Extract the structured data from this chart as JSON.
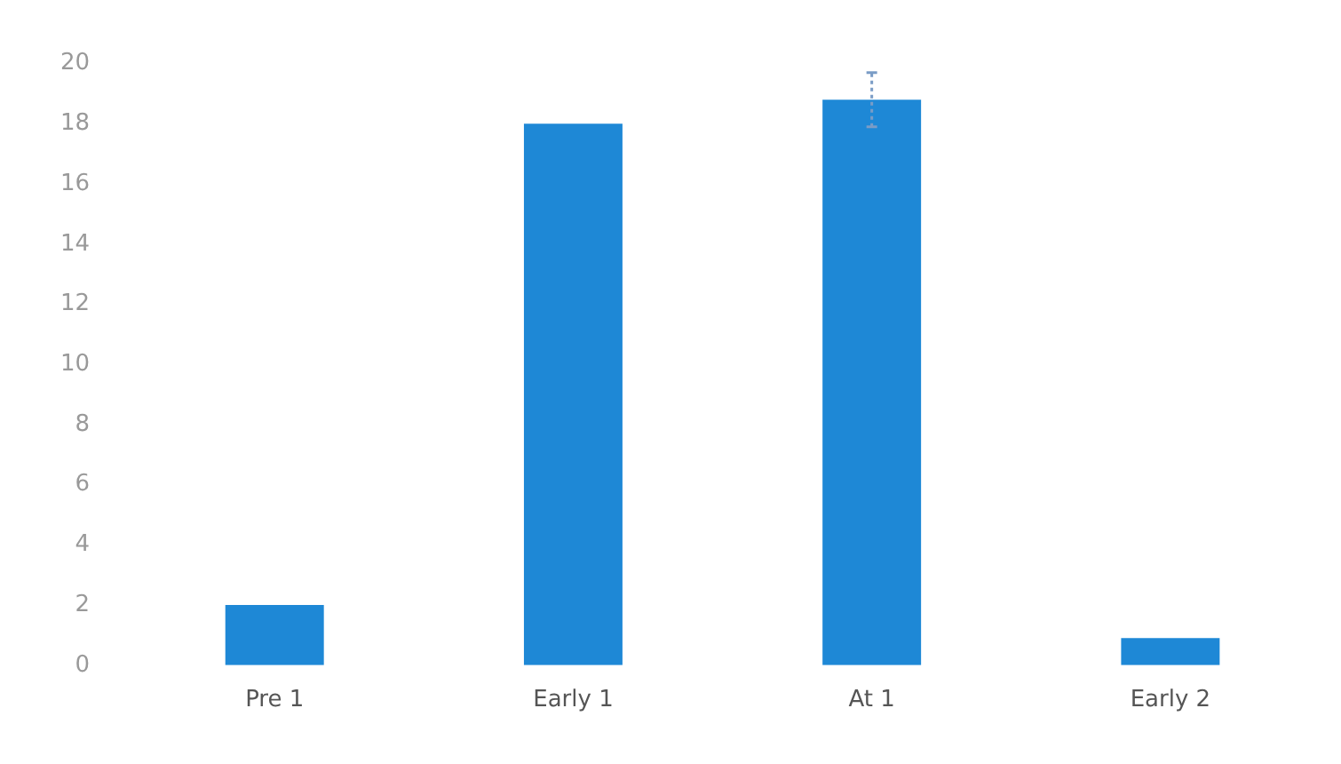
{
  "chart_data": {
    "type": "bar",
    "categories": [
      "Pre 1",
      "Early 1",
      "At 1",
      "Early 2"
    ],
    "values": [
      2,
      18,
      18.8,
      0.9
    ],
    "errors": [
      null,
      null,
      0.9,
      null
    ],
    "color": "#1e88d6",
    "ylim": [
      0,
      20
    ],
    "yticks": [
      0,
      2,
      4,
      6,
      8,
      10,
      12,
      14,
      16,
      18,
      20
    ],
    "grid": false,
    "legend": false
  }
}
